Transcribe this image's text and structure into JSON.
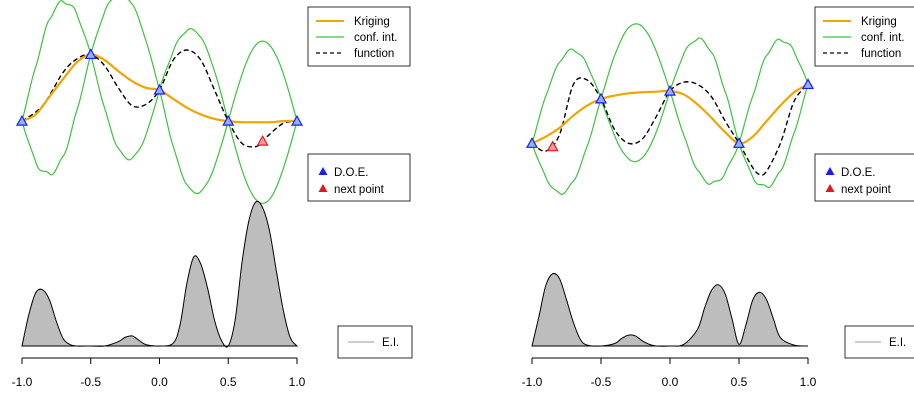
{
  "chart_data": [
    {
      "type": "line",
      "panel": "left",
      "xlim": [
        -1.0,
        1.0
      ],
      "x_ticks": [
        "-1.0",
        "-0.5",
        "0.0",
        "0.5",
        "1.0"
      ],
      "x_tick_values": [
        -1.0,
        -0.5,
        0.0,
        0.5,
        1.0
      ],
      "upper_ylim": [
        -0.8,
        1.0
      ],
      "lower_ylim": [
        0.0,
        1.0
      ],
      "legend_top": {
        "placement": "top-right",
        "entries": [
          "Kriging",
          "conf. int.",
          "function"
        ]
      },
      "legend_points": {
        "placement": "right",
        "entries": [
          "D.O.E.",
          "next point"
        ]
      },
      "legend_ei": {
        "placement": "bottom-right",
        "entries": [
          "E.I."
        ]
      },
      "doe_points": {
        "x": [
          -1.0,
          -0.5,
          0.0,
          0.5,
          1.0
        ],
        "y": [
          0.0,
          0.6,
          0.28,
          0.0,
          0.0
        ]
      },
      "next_point": {
        "x": [
          0.75
        ],
        "y": [
          -0.18
        ]
      },
      "function_curve": {
        "x": [
          -1.0,
          -0.85,
          -0.7,
          -0.6,
          -0.5,
          -0.4,
          -0.3,
          -0.2,
          -0.1,
          0.0,
          0.1,
          0.2,
          0.3,
          0.4,
          0.5,
          0.6,
          0.7,
          0.75,
          0.8,
          0.9,
          1.0
        ],
        "y": [
          0.0,
          0.14,
          0.44,
          0.56,
          0.6,
          0.5,
          0.3,
          0.14,
          0.15,
          0.28,
          0.55,
          0.64,
          0.55,
          0.28,
          0.0,
          -0.2,
          -0.23,
          -0.18,
          -0.12,
          -0.02,
          0.0
        ]
      },
      "kriging_curve": {
        "x": [
          -1.0,
          -0.9,
          -0.8,
          -0.7,
          -0.6,
          -0.5,
          -0.4,
          -0.3,
          -0.2,
          -0.1,
          0.0,
          0.1,
          0.2,
          0.3,
          0.4,
          0.5,
          0.6,
          0.7,
          0.8,
          0.9,
          1.0
        ],
        "y": [
          0.0,
          0.06,
          0.22,
          0.38,
          0.53,
          0.6,
          0.55,
          0.45,
          0.36,
          0.3,
          0.28,
          0.2,
          0.12,
          0.06,
          0.02,
          0.0,
          -0.01,
          -0.01,
          -0.01,
          0.0,
          0.0
        ]
      },
      "conf_int_halfwidth_max": 0.73,
      "ei_curve": {
        "x": [
          -1.0,
          -0.95,
          -0.9,
          -0.85,
          -0.8,
          -0.75,
          -0.7,
          -0.65,
          -0.6,
          -0.5,
          -0.4,
          -0.3,
          -0.25,
          -0.2,
          -0.15,
          -0.1,
          0.0,
          0.1,
          0.15,
          0.2,
          0.25,
          0.3,
          0.35,
          0.4,
          0.45,
          0.5,
          0.55,
          0.6,
          0.65,
          0.7,
          0.75,
          0.8,
          0.85,
          0.9,
          0.95,
          1.0
        ],
        "y": [
          0.0,
          0.22,
          0.37,
          0.39,
          0.32,
          0.17,
          0.05,
          0.01,
          0.0,
          0.0,
          0.0,
          0.03,
          0.06,
          0.07,
          0.04,
          0.01,
          0.0,
          0.02,
          0.15,
          0.44,
          0.62,
          0.57,
          0.4,
          0.18,
          0.04,
          0.0,
          0.18,
          0.58,
          0.87,
          1.0,
          0.96,
          0.8,
          0.52,
          0.25,
          0.06,
          0.0
        ]
      }
    },
    {
      "type": "line",
      "panel": "right",
      "xlim": [
        -1.0,
        1.0
      ],
      "x_ticks": [
        "-1.0",
        "-0.5",
        "0.0",
        "0.5",
        "1.0"
      ],
      "x_tick_values": [
        -1.0,
        -0.5,
        0.0,
        0.5,
        1.0
      ],
      "upper_ylim": [
        -0.8,
        1.0
      ],
      "lower_ylim": [
        0.0,
        1.0
      ],
      "legend_top": {
        "placement": "top-right",
        "entries": [
          "Kriging",
          "conf. int.",
          "function"
        ]
      },
      "legend_points": {
        "placement": "right",
        "entries": [
          "D.O.E.",
          "next point"
        ]
      },
      "legend_ei": {
        "placement": "bottom-right",
        "entries": [
          "E.I."
        ]
      },
      "doe_points": {
        "x": [
          -1.0,
          -0.5,
          0.0,
          0.5,
          1.0
        ],
        "y": [
          -0.2,
          0.2,
          0.27,
          -0.2,
          0.33
        ]
      },
      "next_point": {
        "x": [
          -0.85
        ],
        "y": [
          -0.23
        ]
      },
      "function_curve": {
        "x": [
          -1.0,
          -0.9,
          -0.8,
          -0.7,
          -0.6,
          -0.5,
          -0.4,
          -0.3,
          -0.2,
          -0.1,
          0.0,
          0.1,
          0.2,
          0.3,
          0.4,
          0.5,
          0.6,
          0.65,
          0.7,
          0.8,
          0.9,
          1.0
        ],
        "y": [
          -0.2,
          -0.27,
          -0.12,
          0.33,
          0.37,
          0.2,
          -0.08,
          -0.2,
          -0.16,
          0.04,
          0.27,
          0.35,
          0.33,
          0.22,
          0.0,
          -0.2,
          -0.42,
          -0.48,
          -0.45,
          -0.2,
          0.18,
          0.33
        ]
      },
      "kriging_curve": {
        "x": [
          -1.0,
          -0.9,
          -0.8,
          -0.7,
          -0.6,
          -0.5,
          -0.4,
          -0.3,
          -0.2,
          -0.1,
          0.0,
          0.1,
          0.2,
          0.3,
          0.4,
          0.5,
          0.6,
          0.7,
          0.8,
          0.9,
          1.0
        ],
        "y": [
          -0.2,
          -0.14,
          -0.06,
          0.05,
          0.14,
          0.2,
          0.23,
          0.25,
          0.26,
          0.265,
          0.27,
          0.24,
          0.15,
          0.03,
          -0.1,
          -0.2,
          -0.14,
          0.0,
          0.14,
          0.26,
          0.33
        ]
      },
      "conf_int_halfwidth_max": 0.62,
      "ei_curve": {
        "x": [
          -1.0,
          -0.95,
          -0.9,
          -0.85,
          -0.8,
          -0.75,
          -0.7,
          -0.65,
          -0.6,
          -0.5,
          -0.4,
          -0.35,
          -0.3,
          -0.25,
          -0.2,
          -0.15,
          -0.1,
          0.0,
          0.1,
          0.2,
          0.25,
          0.3,
          0.35,
          0.4,
          0.45,
          0.5,
          0.55,
          0.6,
          0.65,
          0.7,
          0.75,
          0.8,
          0.9,
          1.0
        ],
        "y": [
          0.0,
          0.35,
          0.72,
          0.86,
          0.8,
          0.55,
          0.28,
          0.08,
          0.01,
          0.0,
          0.03,
          0.09,
          0.13,
          0.12,
          0.06,
          0.02,
          0.0,
          0.0,
          0.02,
          0.2,
          0.45,
          0.66,
          0.73,
          0.62,
          0.32,
          0.02,
          0.25,
          0.55,
          0.64,
          0.55,
          0.32,
          0.1,
          0.01,
          0.0
        ]
      }
    }
  ]
}
